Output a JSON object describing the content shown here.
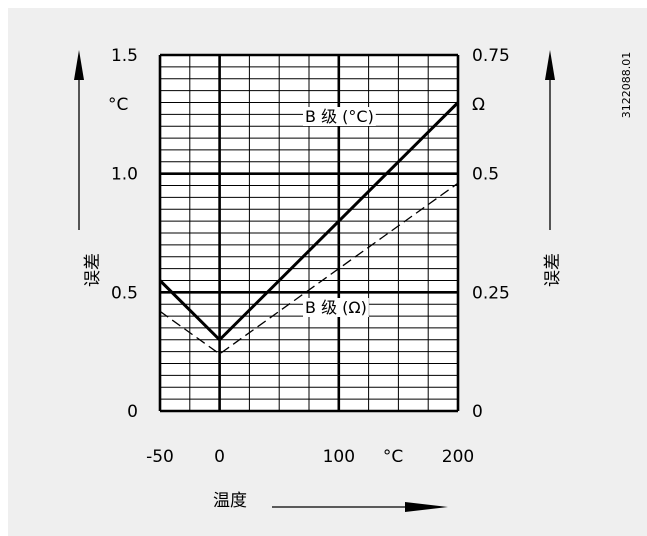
{
  "chart_data": {
    "type": "line",
    "figure_id": "3122088.01",
    "xlabel": "温度",
    "x_unit": "°C",
    "x_ticks": [
      "-50",
      "0",
      "100",
      "200"
    ],
    "xlim": [
      -50,
      200
    ],
    "left_axis": {
      "label": "误差",
      "unit": "°C",
      "ticks": [
        "0",
        "0.5",
        "1.0",
        "1.5"
      ],
      "ylim": [
        0,
        1.5
      ]
    },
    "right_axis": {
      "label": "误差",
      "unit": "Ω",
      "ticks": [
        "0",
        "0.25",
        "0.5",
        "0.75"
      ],
      "ylim": [
        0,
        0.75
      ]
    },
    "series": [
      {
        "name": "B 级 (°C)",
        "axis": "left",
        "style": "solid-thick",
        "x": [
          -50,
          0,
          200
        ],
        "y": [
          0.55,
          0.3,
          1.3
        ]
      },
      {
        "name": "B 级 (Ω)",
        "axis": "right",
        "style": "dashed",
        "x": [
          -50,
          0,
          200
        ],
        "y": [
          0.21,
          0.12,
          0.48
        ]
      }
    ],
    "grid": true,
    "colors": {
      "line": "#000000",
      "background": "#efefef"
    }
  }
}
